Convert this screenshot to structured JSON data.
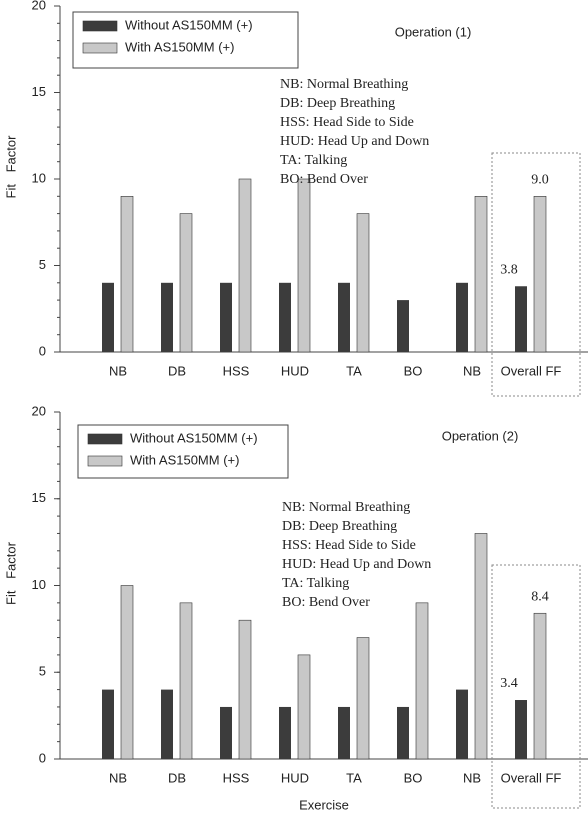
{
  "chart_data": [
    {
      "type": "bar",
      "title": "Operation (1)",
      "ylabel": "Fit Factor",
      "categories": [
        "NB",
        "DB",
        "HSS",
        "HUD",
        "TA",
        "BO",
        "NB",
        "Overall FF"
      ],
      "series": [
        {
          "name": "Without AS150MM (+)",
          "color": "#3c3c3c",
          "values": [
            4,
            4,
            4,
            4,
            4,
            3,
            4,
            3.8
          ],
          "value_labels": [
            null,
            null,
            null,
            null,
            null,
            null,
            null,
            "3.8"
          ]
        },
        {
          "name": "With AS150MM (+)",
          "color": "#c8c8c8",
          "values": [
            9,
            8,
            10,
            10,
            8,
            null,
            9,
            9
          ],
          "value_labels": [
            null,
            null,
            null,
            null,
            null,
            null,
            null,
            "9.0"
          ]
        }
      ],
      "ylim": [
        0,
        20
      ],
      "yticks": [
        0,
        5,
        10,
        15,
        20
      ],
      "annotations": [
        "NB: Normal Breathing",
        "DB: Deep Breathing",
        "HSS: Head Side to Side",
        "HUD: Head Up and Down",
        "TA: Talking",
        "BO: Bend Over"
      ]
    },
    {
      "type": "bar",
      "title": "Operation (2)",
      "ylabel": "Fit Factor",
      "xlabel": "Exercise",
      "categories": [
        "NB",
        "DB",
        "HSS",
        "HUD",
        "TA",
        "BO",
        "NB",
        "Overall FF"
      ],
      "series": [
        {
          "name": "Without AS150MM (+)",
          "color": "#3c3c3c",
          "values": [
            4,
            4,
            3,
            3,
            3,
            3,
            4,
            3.4
          ],
          "value_labels": [
            null,
            null,
            null,
            null,
            null,
            null,
            null,
            "3.4"
          ]
        },
        {
          "name": "With AS150MM (+)",
          "color": "#c8c8c8",
          "values": [
            10,
            9,
            8,
            6,
            7,
            9,
            13,
            8.4
          ],
          "value_labels": [
            null,
            null,
            null,
            null,
            null,
            null,
            null,
            "8.4"
          ]
        }
      ],
      "ylim": [
        0,
        20
      ],
      "yticks": [
        0,
        5,
        10,
        15,
        20
      ],
      "annotations": [
        "NB: Normal Breathing",
        "DB: Deep Breathing",
        "HSS: Head Side to Side",
        "HUD: Head Up and Down",
        "TA: Talking",
        "BO: Bend Over"
      ]
    }
  ]
}
